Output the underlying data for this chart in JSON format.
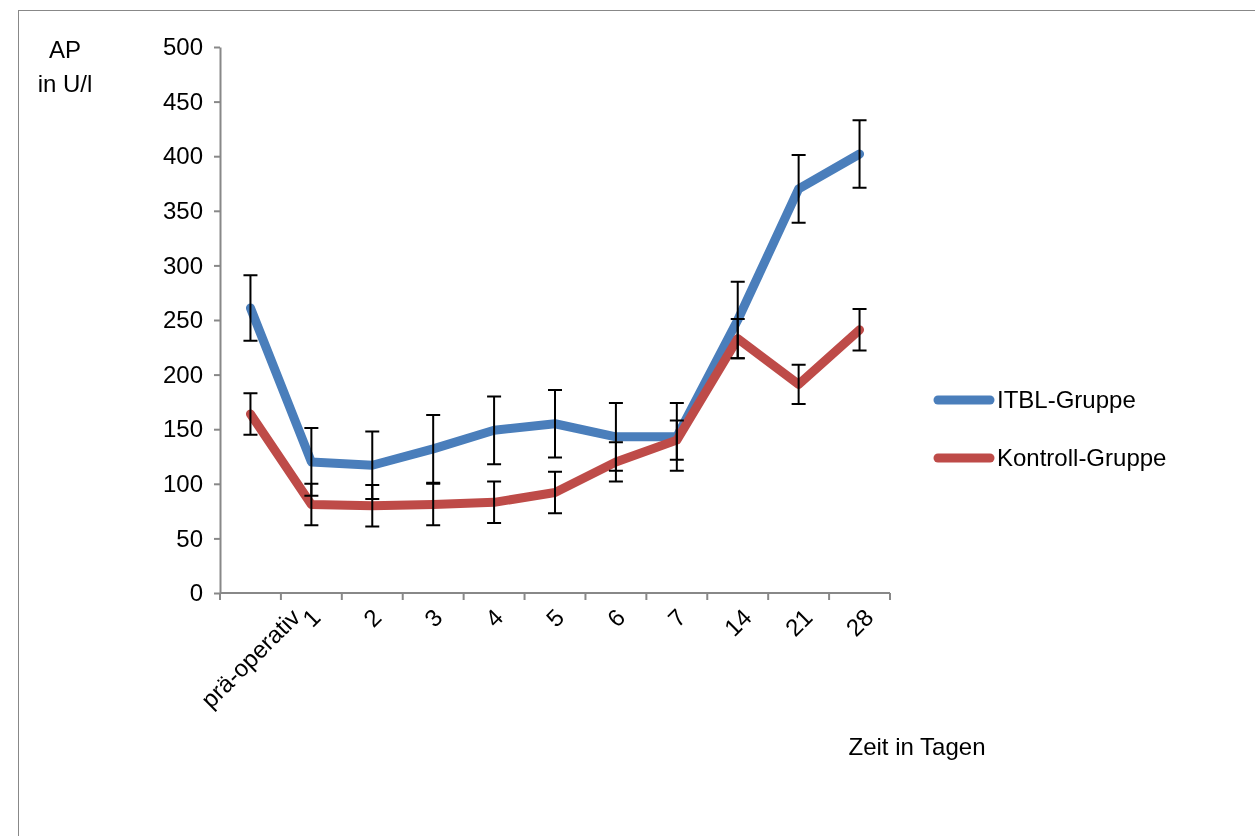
{
  "chart_data": {
    "type": "line",
    "ylabel": "AP\nin U/l",
    "xlabel": "Zeit in Tagen",
    "categories": [
      "prä-operativ",
      "1",
      "2",
      "3",
      "4",
      "5",
      "6",
      "7",
      "14",
      "21",
      "28"
    ],
    "ylim": [
      0,
      500
    ],
    "yticks": [
      0,
      50,
      100,
      150,
      200,
      250,
      300,
      350,
      400,
      450,
      500
    ],
    "series": [
      {
        "name": "ITBL-Gruppe",
        "color": "#4a7ebb",
        "values": [
          261,
          120,
          117,
          132,
          149,
          155,
          143,
          143,
          250,
          370,
          402
        ],
        "errors": [
          30,
          31,
          31,
          31,
          31,
          31,
          31,
          31,
          35,
          31,
          31
        ]
      },
      {
        "name": "Kontroll-Gruppe",
        "color": "#be4b48",
        "values": [
          164,
          81,
          80,
          81,
          83,
          92,
          120,
          140,
          233,
          191,
          241
        ],
        "errors": [
          19,
          19,
          19,
          19,
          19,
          19,
          18,
          18,
          18,
          18,
          19
        ]
      }
    ],
    "legend": "right",
    "grid": false,
    "marker": "none",
    "line_style": "solid"
  }
}
